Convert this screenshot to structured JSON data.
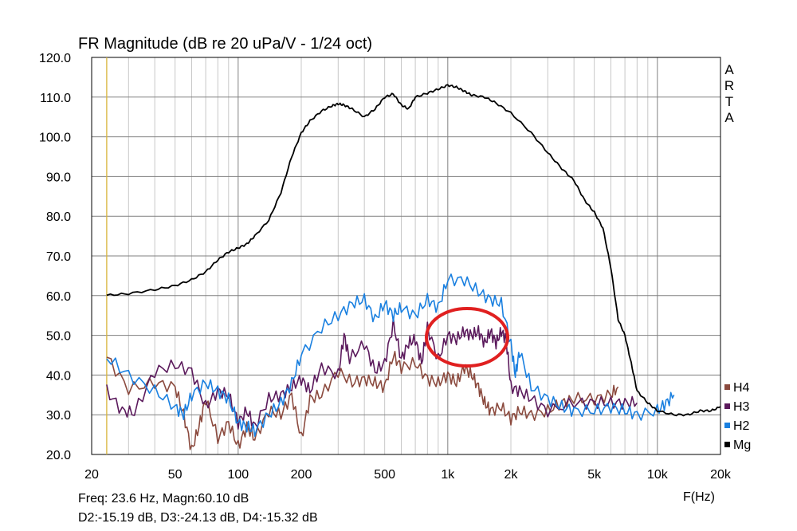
{
  "chart_data": {
    "type": "line",
    "title": "FR Magnitude (dB re 20 uPa/V - 1/24 oct)",
    "xlabel": "F(Hz)",
    "ylabel": "",
    "x_scale": "log",
    "xlim": [
      20,
      20000
    ],
    "ylim": [
      20,
      120
    ],
    "grid": true,
    "y_ticks": [
      "20.0",
      "30.0",
      "40.0",
      "50.0",
      "60.0",
      "70.0",
      "80.0",
      "90.0",
      "100.0",
      "110.0",
      "120.0"
    ],
    "x_ticks": [
      {
        "value": 20,
        "label": "20"
      },
      {
        "value": 50,
        "label": "50"
      },
      {
        "value": 100,
        "label": "100"
      },
      {
        "value": 200,
        "label": "200"
      },
      {
        "value": 500,
        "label": "500"
      },
      {
        "value": 1000,
        "label": "1k"
      },
      {
        "value": 2000,
        "label": "2k"
      },
      {
        "value": 5000,
        "label": "5k"
      },
      {
        "value": 10000,
        "label": "10k"
      },
      {
        "value": 20000,
        "label": "20k"
      }
    ],
    "side_label": "ARTA",
    "cursor_freq": 23.6,
    "readout_line1": "Freq: 23.6 Hz, Magn:60.10 dB",
    "readout_line2": "D2:-15.19 dB, D3:-24.13 dB, D4:-15.32 dB",
    "legend_position": "bottom-right",
    "series": [
      {
        "name": "H4",
        "color": "#8b4a3e",
        "x": [
          23.6,
          30,
          40,
          50,
          55,
          60,
          65,
          70,
          80,
          90,
          100,
          110,
          120,
          140,
          160,
          180,
          200,
          220,
          250,
          300,
          350,
          400,
          450,
          500,
          550,
          600,
          700,
          800,
          900,
          1000,
          1100,
          1200,
          1300,
          1400,
          1500,
          1600,
          1800,
          2000,
          2200,
          2500,
          3000,
          3500,
          4000,
          5000,
          6000,
          6500
        ],
        "y": [
          44.5,
          36.5,
          38,
          37,
          30,
          21,
          27,
          34,
          24,
          28,
          22,
          27,
          24,
          31,
          30,
          35,
          24,
          34,
          35,
          41,
          38,
          39,
          38,
          37,
          45,
          42,
          43,
          39,
          38,
          40,
          38,
          42,
          40,
          37,
          33,
          31,
          32,
          29,
          31,
          30,
          31,
          33,
          34,
          34,
          35,
          37
        ]
      },
      {
        "name": "H3",
        "color": "#5b1a5c",
        "x": [
          23.6,
          28,
          32,
          40,
          50,
          60,
          70,
          80,
          90,
          100,
          110,
          120,
          140,
          160,
          180,
          200,
          220,
          250,
          300,
          320,
          340,
          400,
          450,
          500,
          550,
          600,
          650,
          700,
          750,
          800,
          900,
          1000,
          1100,
          1200,
          1300,
          1400,
          1500,
          1600,
          1700,
          1800,
          1900,
          2000,
          2200,
          2500,
          3000,
          4000,
          5000,
          6000,
          7000,
          8000
        ],
        "y": [
          36,
          31,
          30.5,
          41,
          42.5,
          41,
          32,
          36,
          35,
          28,
          31,
          27,
          34,
          35,
          37,
          39,
          36,
          42,
          40,
          50,
          44,
          48,
          41,
          43,
          53,
          44,
          48,
          49,
          43,
          52,
          44,
          50,
          49,
          51,
          50,
          51,
          48,
          51,
          48,
          51,
          49,
          37,
          36,
          34,
          31,
          33,
          33,
          33,
          33,
          33
        ]
      },
      {
        "name": "H2",
        "color": "#1a80e0",
        "x": [
          23.6,
          30,
          40,
          50,
          55,
          60,
          70,
          80,
          90,
          100,
          110,
          120,
          140,
          160,
          180,
          200,
          250,
          300,
          350,
          400,
          450,
          500,
          550,
          600,
          700,
          800,
          900,
          1000,
          1200,
          1400,
          1600,
          1800,
          2000,
          2100,
          2200,
          2500,
          3000,
          3500,
          4000,
          5000,
          6000,
          7000,
          8000,
          10000,
          11000,
          12000
        ],
        "y": [
          44.5,
          40,
          36,
          32,
          30,
          35,
          38,
          36,
          34,
          28,
          27,
          26,
          30,
          33,
          38,
          45,
          52,
          55,
          58,
          59,
          54,
          58,
          55,
          57,
          55,
          59,
          57,
          64,
          64,
          61,
          59,
          58,
          48,
          40,
          46,
          37,
          34,
          32,
          31,
          31,
          32,
          31,
          30,
          31,
          33,
          35
        ]
      },
      {
        "name": "Mg",
        "color": "#000000",
        "x": [
          23.6,
          30,
          40,
          50,
          60,
          70,
          80,
          90,
          100,
          110,
          120,
          140,
          160,
          180,
          200,
          220,
          250,
          280,
          300,
          320,
          350,
          400,
          450,
          500,
          550,
          600,
          650,
          700,
          800,
          900,
          1000,
          1100,
          1200,
          1300,
          1500,
          1700,
          2000,
          2500,
          3000,
          3500,
          4000,
          4500,
          5000,
          5500,
          6000,
          6500,
          7000,
          7500,
          8000,
          9000,
          10000,
          12000,
          14000,
          16000,
          18000,
          20000
        ],
        "y": [
          60.1,
          60.5,
          61.5,
          62.5,
          64,
          66,
          69,
          71,
          72,
          73,
          75,
          79,
          86,
          95,
          101,
          104,
          106.5,
          107.8,
          108.3,
          108,
          107,
          105,
          107,
          110,
          110.8,
          108,
          107,
          110,
          111,
          112,
          113,
          112.5,
          111.5,
          110.5,
          110,
          108.5,
          106,
          101,
          96,
          92,
          89,
          84,
          81,
          77,
          67,
          54,
          50,
          43,
          36,
          33,
          31,
          30,
          30,
          31,
          31,
          32
        ]
      }
    ]
  }
}
